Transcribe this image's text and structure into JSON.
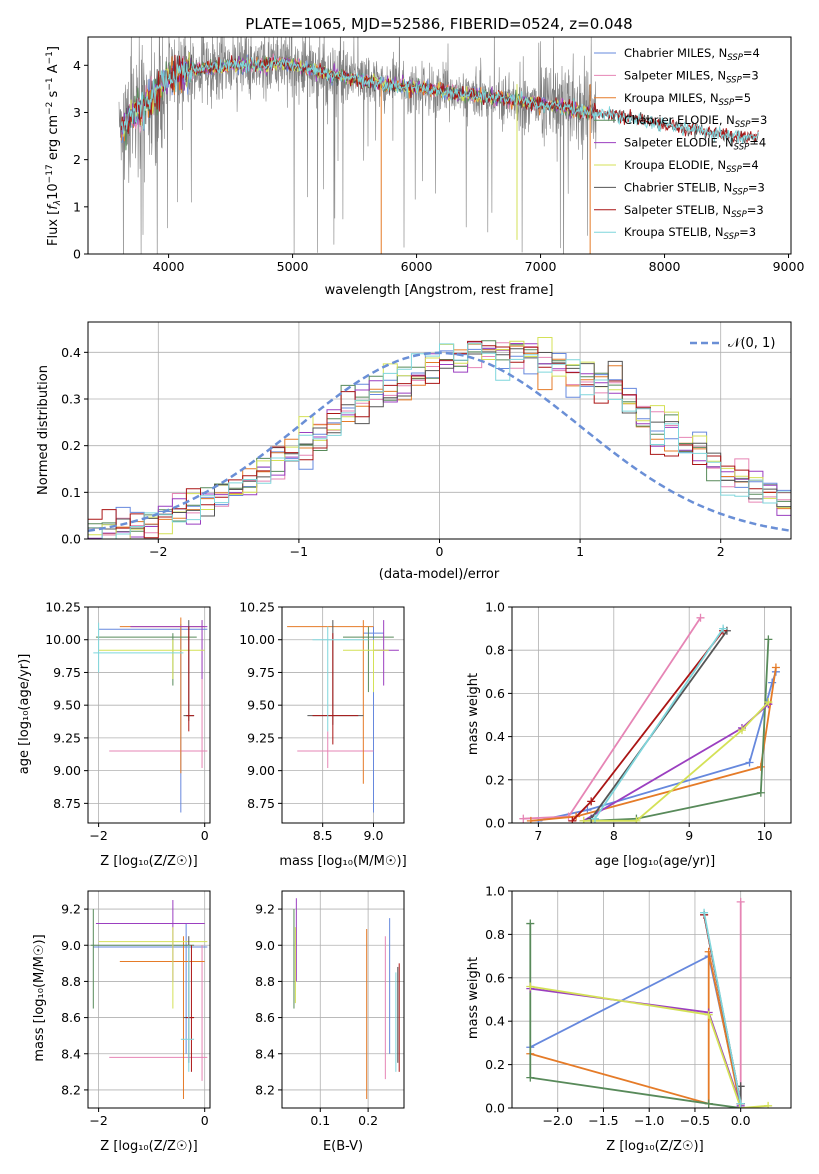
{
  "colors": {
    "Chabrier MILES": "#6688dd",
    "Salpeter MILES": "#e685b5",
    "Kroupa MILES": "#e57b28",
    "Chabrier ELODIE": "#588a5a",
    "Salpeter ELODIE": "#9b3fc0",
    "Kroupa ELODIE": "#d4e157",
    "Chabrier STELIB": "#555555",
    "Salpeter STELIB": "#aa1515",
    "Kroupa STELIB": "#7fd6dc",
    "data": "#808080",
    "normal": "#6a8fd6"
  },
  "chart_data": [
    {
      "type": "line",
      "title": "PLATE=1065, MJD=52586, FIBERID=0524, z=0.048",
      "xlabel": "wavelength [Angstrom, rest frame]",
      "ylabel": "Flux [f_λ10^-17 erg cm^-2 s^-1 A^-1]",
      "xlim": [
        3350,
        9020
      ],
      "ylim": [
        0,
        4.6
      ],
      "xticks": [
        "4000",
        "5000",
        "6000",
        "7000",
        "8000",
        "9000"
      ],
      "yticks": [
        "0",
        "1",
        "2",
        "3",
        "4"
      ],
      "legend_placement": "upper right",
      "legend": [
        {
          "name": "Chabrier MILES",
          "label": "Chabrier MILES, N",
          "sub": "SSP",
          "tail": "=4"
        },
        {
          "name": "Salpeter MILES",
          "label": "Salpeter MILES, N",
          "sub": "SSP",
          "tail": "=3"
        },
        {
          "name": "Kroupa MILES",
          "label": "Kroupa MILES, N",
          "sub": "SSP",
          "tail": "=5"
        },
        {
          "name": "Chabrier ELODIE",
          "label": "Chabrier ELODIE, N",
          "sub": "SSP",
          "tail": "=3"
        },
        {
          "name": "Salpeter ELODIE",
          "label": "Salpeter ELODIE, N",
          "sub": "SSP",
          "tail": "=4"
        },
        {
          "name": "Kroupa ELODIE",
          "label": "Kroupa ELODIE, N",
          "sub": "SSP",
          "tail": "=4"
        },
        {
          "name": "Chabrier STELIB",
          "label": "Chabrier STELIB, N",
          "sub": "SSP",
          "tail": "=3"
        },
        {
          "name": "Salpeter STELIB",
          "label": "Salpeter STELIB, N",
          "sub": "SSP",
          "tail": "=3"
        },
        {
          "name": "Kroupa STELIB",
          "label": "Kroupa STELIB, N",
          "sub": "SSP",
          "tail": "=3"
        }
      ],
      "continuum": {
        "x": [
          3620,
          3700,
          3800,
          3900,
          4000,
          4100,
          4300,
          4500,
          4700,
          4900,
          5100,
          5300,
          5500,
          5700,
          5900,
          6100,
          6300,
          6500,
          6700,
          6900,
          7100,
          7300,
          7440,
          7700,
          8000,
          8300,
          8600,
          8760
        ],
        "y": [
          2.7,
          2.9,
          3.15,
          3.4,
          3.75,
          3.85,
          3.95,
          4.0,
          4.0,
          4.05,
          3.95,
          3.8,
          3.7,
          3.6,
          3.55,
          3.5,
          3.4,
          3.35,
          3.3,
          3.2,
          3.15,
          3.05,
          3.0,
          2.9,
          2.75,
          2.6,
          2.5,
          2.45
        ]
      },
      "data_range": [
        3600,
        7450
      ]
    },
    {
      "type": "bar",
      "xlabel": "(data-model)/error",
      "ylabel": "Normed distribution",
      "xlim": [
        -2.5,
        2.5
      ],
      "ylim": [
        0,
        0.465
      ],
      "xticks": [
        "−2",
        "−1",
        "0",
        "1",
        "2"
      ],
      "yticks": [
        "0.0",
        "0.1",
        "0.2",
        "0.3",
        "0.4"
      ],
      "legend": "𝒩(0, 1)",
      "legend_placement": "upper right",
      "bin_width": 0.1,
      "bin_start": -2.5,
      "mean_profile": [
        0.018,
        0.022,
        0.027,
        0.031,
        0.038,
        0.045,
        0.055,
        0.066,
        0.078,
        0.092,
        0.108,
        0.125,
        0.143,
        0.163,
        0.184,
        0.205,
        0.227,
        0.248,
        0.27,
        0.29,
        0.31,
        0.328,
        0.345,
        0.36,
        0.372,
        0.383,
        0.392,
        0.398,
        0.401,
        0.401,
        0.398,
        0.392,
        0.383,
        0.372,
        0.36,
        0.345,
        0.328,
        0.31,
        0.29,
        0.27,
        0.248,
        0.227,
        0.205,
        0.184,
        0.163,
        0.143,
        0.125,
        0.108,
        0.092,
        0.078
      ]
    },
    {
      "type": "scatter",
      "xlabel": "Z [log₁₀(Z/Z☉)]",
      "ylabel": "age  [log₁₀(age/yr)]",
      "xlim": [
        -2.2,
        0.1
      ],
      "ylim": [
        8.6,
        10.25
      ],
      "xticks": [
        "−2",
        "0"
      ],
      "yticks": [
        "8.75",
        "9.00",
        "9.25",
        "9.50",
        "9.75",
        "10.00",
        "10.25"
      ]
    },
    {
      "type": "scatter",
      "xlabel": "mass [log₁₀(M/M☉)]",
      "ylabel": "",
      "xlim": [
        8.1,
        9.3
      ],
      "ylim": [
        8.6,
        10.25
      ],
      "xticks": [
        "8.5",
        "9.0"
      ],
      "yticks": [
        "8.75",
        "9.00",
        "9.25",
        "9.50",
        "9.75",
        "10.00",
        "10.25"
      ]
    },
    {
      "type": "line",
      "xlabel": "age  [log₁₀(age/yr)]",
      "ylabel": "mass weight",
      "xlim": [
        6.65,
        10.35
      ],
      "ylim": [
        0,
        1.0
      ],
      "xticks": [
        "7",
        "8",
        "9",
        "10"
      ],
      "yticks": [
        "0.0",
        "0.2",
        "0.4",
        "0.6",
        "0.8",
        "1.0"
      ],
      "series": [
        {
          "name": "Chabrier MILES",
          "x": [
            7.0,
            7.65,
            9.8,
            10.1,
            10.15
          ],
          "y": [
            0.01,
            0.06,
            0.28,
            0.65,
            0.7
          ]
        },
        {
          "name": "Salpeter MILES",
          "x": [
            6.8,
            7.4,
            9.15
          ],
          "y": [
            0.02,
            0.03,
            0.95
          ]
        },
        {
          "name": "Kroupa MILES",
          "x": [
            6.9,
            7.5,
            9.95,
            10.15
          ],
          "y": [
            0.01,
            0.03,
            0.26,
            0.72
          ]
        },
        {
          "name": "Chabrier ELODIE",
          "x": [
            7.7,
            8.3,
            9.95,
            10.05
          ],
          "y": [
            0.01,
            0.02,
            0.14,
            0.85
          ]
        },
        {
          "name": "Salpeter ELODIE",
          "x": [
            7.6,
            9.7,
            10.05
          ],
          "y": [
            0.01,
            0.44,
            0.55
          ]
        },
        {
          "name": "Kroupa ELODIE",
          "x": [
            7.6,
            8.3,
            9.7,
            10.05
          ],
          "y": [
            0.01,
            0.01,
            0.43,
            0.56
          ]
        },
        {
          "name": "Chabrier STELIB",
          "x": [
            7.7,
            9.5
          ],
          "y": [
            0.02,
            0.89
          ]
        },
        {
          "name": "Salpeter STELIB",
          "x": [
            7.45,
            7.7,
            9.45
          ],
          "y": [
            0.01,
            0.1,
            0.89
          ]
        },
        {
          "name": "Kroupa STELIB",
          "x": [
            7.75,
            9.45
          ],
          "y": [
            0.02,
            0.9
          ]
        }
      ]
    },
    {
      "type": "scatter",
      "xlabel": "Z [log₁₀(Z/Z☉)]",
      "ylabel": "mass [log₁₀(M/M☉)]",
      "xlim": [
        -2.2,
        0.1
      ],
      "ylim": [
        8.1,
        9.3
      ],
      "xticks": [
        "−2",
        "0"
      ],
      "yticks": [
        "8.2",
        "8.4",
        "8.6",
        "8.8",
        "9.0",
        "9.2"
      ]
    },
    {
      "type": "scatter",
      "xlabel": "E(B-V)",
      "ylabel": "",
      "xlim": [
        0.02,
        0.275
      ],
      "ylim": [
        8.1,
        9.3
      ],
      "xticks": [
        "0.1",
        "0.2"
      ],
      "yticks": [
        "8.2",
        "8.4",
        "8.6",
        "8.8",
        "9.0",
        "9.2"
      ]
    },
    {
      "type": "line",
      "xlabel": "Z [log₁₀(Z/Z☉)]",
      "ylabel": "mass weight",
      "xlim": [
        -2.5,
        0.55
      ],
      "ylim": [
        0,
        1.0
      ],
      "xticks": [
        "−2.0",
        "−1.5",
        "−1.0",
        "−0.5",
        "0.0"
      ],
      "yticks": [
        "0.0",
        "0.2",
        "0.4",
        "0.6",
        "0.8",
        "1.0"
      ],
      "series": [
        {
          "name": "Chabrier MILES",
          "x": [
            -2.3,
            -0.35,
            0.0,
            0.0
          ],
          "y": [
            0.28,
            0.7,
            0.02,
            0.0
          ]
        },
        {
          "name": "Salpeter MILES",
          "x": [
            0.0,
            0.0
          ],
          "y": [
            0.95,
            0.02
          ]
        },
        {
          "name": "Kroupa MILES",
          "x": [
            -2.3,
            -0.35,
            -0.35,
            0.0
          ],
          "y": [
            0.25,
            0.02,
            0.72,
            0.0
          ]
        },
        {
          "name": "Chabrier ELODIE",
          "x": [
            -2.3,
            -2.3,
            -0.35,
            0.0
          ],
          "y": [
            0.85,
            0.14,
            0.02,
            0.0
          ]
        },
        {
          "name": "Salpeter ELODIE",
          "x": [
            -2.3,
            -0.35,
            0.0
          ],
          "y": [
            0.55,
            0.44,
            0.01
          ]
        },
        {
          "name": "Kroupa ELODIE",
          "x": [
            -2.3,
            -0.35,
            0.0,
            0.3
          ],
          "y": [
            0.56,
            0.43,
            0.0,
            0.01
          ]
        },
        {
          "name": "Chabrier STELIB",
          "x": [
            -0.4,
            0.0,
            0.0
          ],
          "y": [
            0.89,
            0.02,
            0.1
          ]
        },
        {
          "name": "Salpeter STELIB",
          "x": [
            -0.4,
            0.0
          ],
          "y": [
            0.89,
            0.02
          ]
        },
        {
          "name": "Kroupa STELIB",
          "x": [
            -0.4,
            0.0
          ],
          "y": [
            0.9,
            0.02
          ]
        }
      ]
    }
  ]
}
